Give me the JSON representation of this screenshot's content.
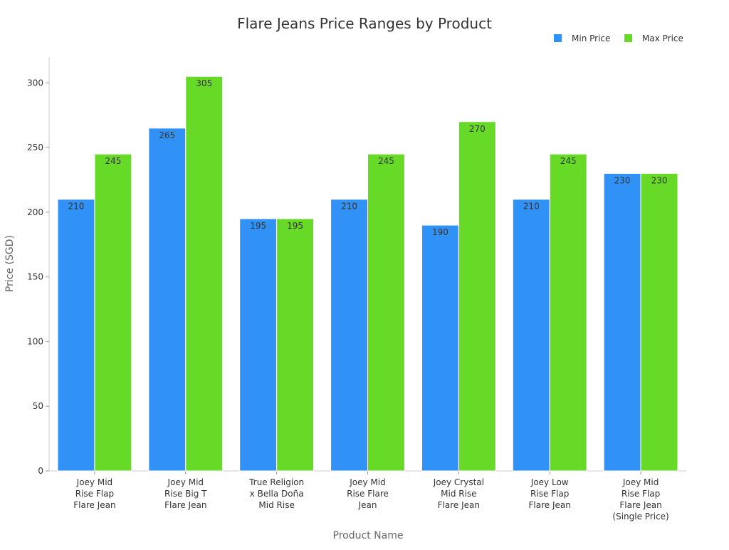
{
  "chart_data": {
    "type": "bar",
    "title": "Flare Jeans Price Ranges by Product",
    "xlabel": "Product Name",
    "ylabel": "Price (SGD)",
    "ylim": [
      0,
      320
    ],
    "yticks": [
      0,
      50,
      100,
      150,
      200,
      250,
      300
    ],
    "grid": false,
    "legend_position": "top-right",
    "categories": [
      [
        "Joey Mid",
        "Rise Flap",
        "Flare Jean"
      ],
      [
        "Joey Mid",
        "Rise Big T",
        "Flare Jean"
      ],
      [
        "True Religion",
        "x Bella Doña",
        "Mid Rise"
      ],
      [
        "Joey Mid",
        "Rise Flare",
        "Jean"
      ],
      [
        "Joey Crystal",
        "Mid Rise",
        "Flare Jean"
      ],
      [
        "Joey Low",
        "Rise Flap",
        "Flare Jean"
      ],
      [
        "Joey Mid",
        "Rise Flap",
        "Flare Jean",
        "(Single Price)"
      ]
    ],
    "series": [
      {
        "name": "Min Price",
        "color": "#3092f7",
        "values": [
          210,
          265,
          195,
          210,
          190,
          210,
          230
        ]
      },
      {
        "name": "Max Price",
        "color": "#66da26",
        "values": [
          245,
          305,
          195,
          245,
          270,
          245,
          230
        ]
      }
    ]
  }
}
